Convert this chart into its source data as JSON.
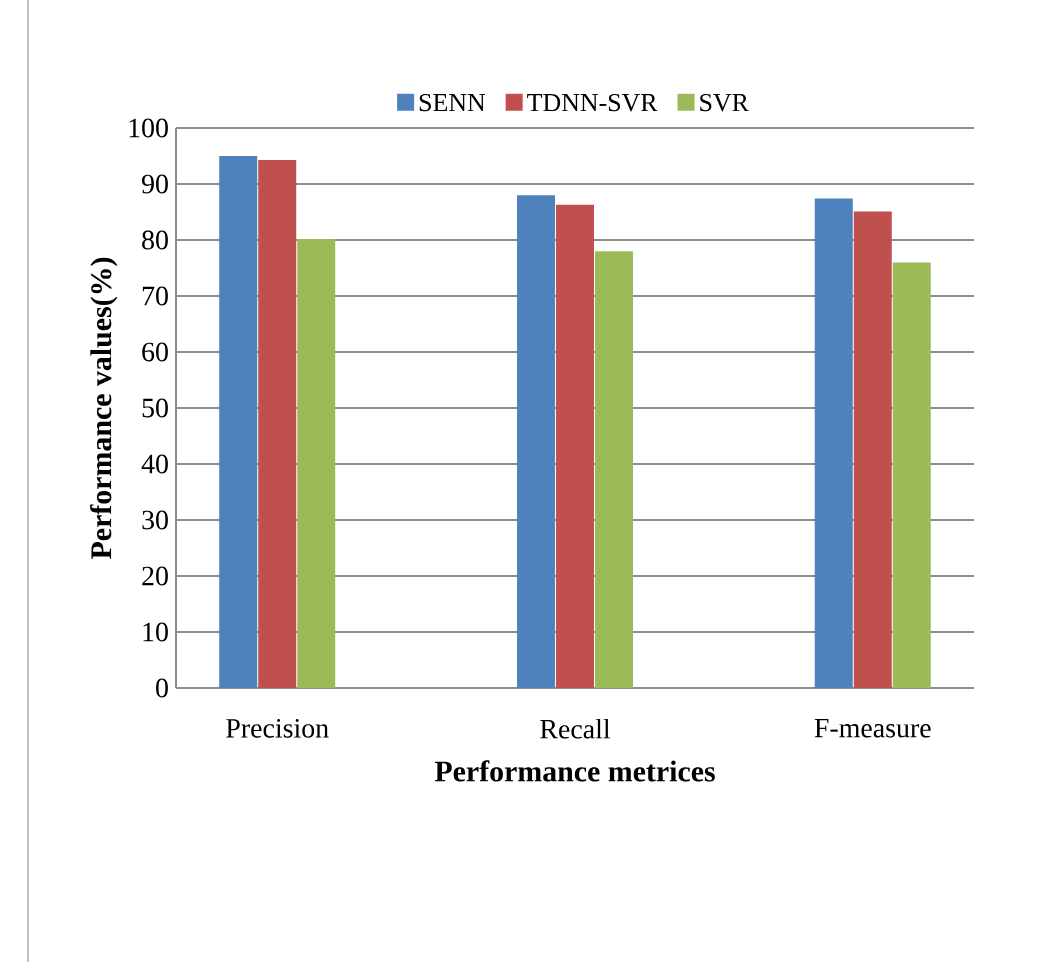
{
  "chart_data": {
    "type": "bar",
    "xlabel": "Performance metrices",
    "ylabel": "Performance values(%)",
    "categories": [
      "Precision",
      "Recall",
      "F-measure"
    ],
    "series": [
      {
        "name": "SENN",
        "color": "#4f81bd",
        "values": [
          95,
          88,
          87.4
        ]
      },
      {
        "name": "TDNN-SVR",
        "color": "#c0504d",
        "values": [
          94.3,
          86.3,
          85.1
        ]
      },
      {
        "name": "SVR",
        "color": "#9bbb59",
        "values": [
          80.2,
          78,
          76
        ]
      }
    ],
    "ylim": [
      0,
      100
    ],
    "yticks": [
      0,
      10,
      20,
      30,
      40,
      50,
      60,
      70,
      80,
      90,
      100
    ],
    "grid": "y",
    "legend": "top"
  }
}
